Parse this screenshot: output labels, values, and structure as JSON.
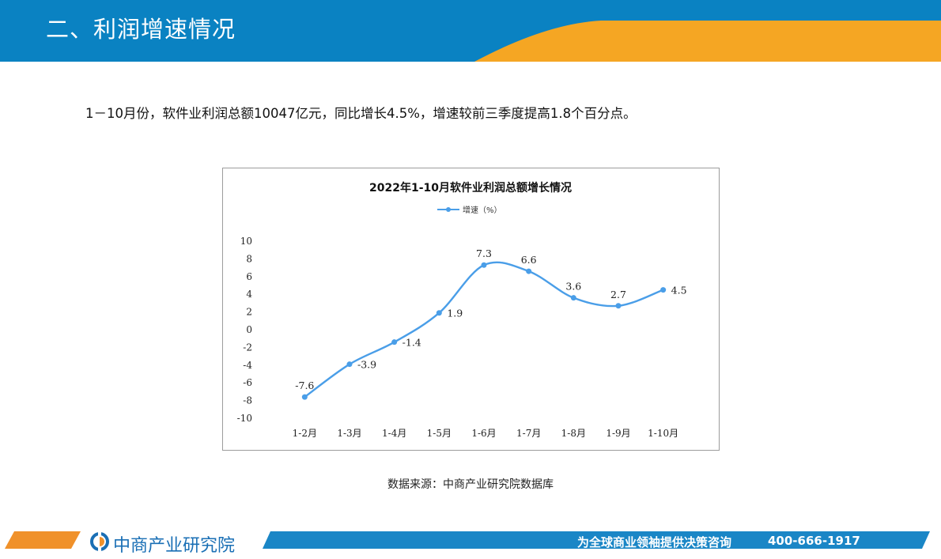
{
  "header": {
    "title": "二、利润增速情况"
  },
  "summary": "1－10月份，软件业利润总额10047亿元，同比增长4.5%，增速较前三季度提高1.8个百分点。",
  "colors": {
    "header_blue": "#0a82c2",
    "header_orange": "#f5a623",
    "series_line": "#4a9ee8",
    "footer_blue": "#1a86c6",
    "footer_orange": "#f0912a"
  },
  "chart_data": {
    "type": "line",
    "title": "2022年1-10月软件业利润总额增长情况",
    "categories": [
      "1-2月",
      "1-3月",
      "1-4月",
      "1-5月",
      "1-6月",
      "1-7月",
      "1-8月",
      "1-9月",
      "1-10月"
    ],
    "series": [
      {
        "name": "增速（%）",
        "values": [
          -7.6,
          -3.9,
          -1.4,
          1.9,
          7.3,
          6.6,
          3.6,
          2.7,
          4.5
        ]
      }
    ],
    "data_labels": [
      "-7.6",
      "-3.9",
      "-1.4",
      "1.9",
      "7.3",
      "6.6",
      "3.6",
      "2.7",
      "4.5"
    ],
    "ylim": [
      -10,
      10
    ],
    "yticks": [
      10,
      8,
      6,
      4,
      2,
      0,
      -2,
      -4,
      -6,
      -8,
      -10
    ],
    "ytick_labels": [
      "10",
      "8",
      "6",
      "4",
      "2",
      "0",
      "-2",
      "-4",
      "-6",
      "-8",
      "-10"
    ],
    "grid": false,
    "legend": "top",
    "smooth": true
  },
  "source": "数据来源：中商产业研究院数据库",
  "footer": {
    "logo_name": "中商产业研究院",
    "logo_icon": "zhongshang-logo-icon",
    "slogan": "为全球商业领袖提供决策咨询",
    "phone": "400-666-1917"
  }
}
